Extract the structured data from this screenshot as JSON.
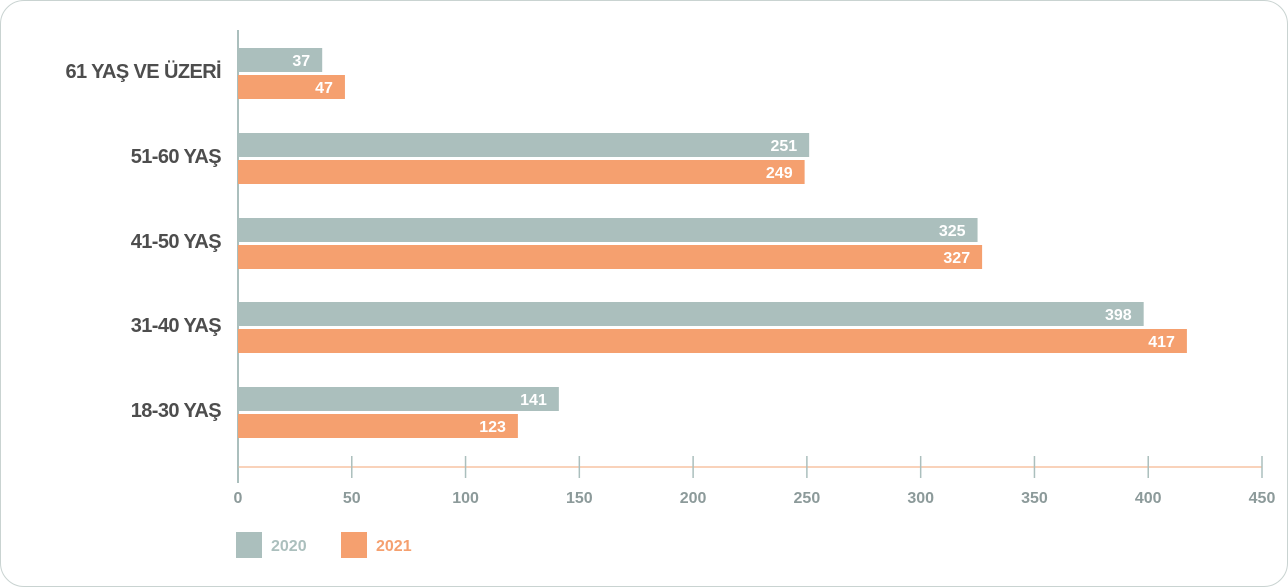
{
  "chart_data": {
    "type": "bar",
    "orientation": "horizontal",
    "categories": [
      "61 YAŞ VE ÜZERİ",
      "51-60 YAŞ",
      "41-50 YAŞ",
      "31-40 YAŞ",
      "18-30 YAŞ"
    ],
    "series": [
      {
        "name": "2020",
        "values": [
          37,
          251,
          325,
          398,
          141
        ],
        "color": "#abbfbd"
      },
      {
        "name": "2021",
        "values": [
          47,
          249,
          327,
          417,
          123
        ],
        "color": "#f5a06f"
      }
    ],
    "xlim": [
      0,
      450
    ],
    "xticks": [
      "0",
      "50",
      "100",
      "150",
      "200",
      "250",
      "300",
      "350",
      "400",
      "450"
    ],
    "legend_position": "bottom-left",
    "grid": false,
    "axis_color": "#abbfbd",
    "category_label_color": "#4d4d4d",
    "tick_label_color": "#8c9a9a"
  }
}
